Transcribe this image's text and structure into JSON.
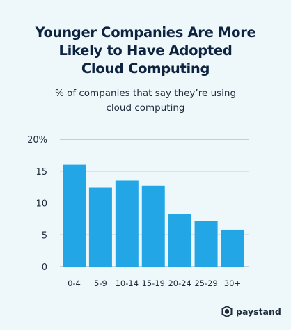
{
  "header": {
    "title_lines": [
      "Younger Companies Are More",
      "Likely to Have Adopted",
      "Cloud Computing"
    ],
    "subtitle_lines": [
      "% of companies that say they’re using",
      "cloud computing"
    ]
  },
  "brand": {
    "name": "paystand",
    "icon": "paystand-hexagon-logo-icon"
  },
  "colors": {
    "bar": "#23a6e6",
    "grid": "#9aa7b3",
    "background": "#eef8fb",
    "title": "#0d2340"
  },
  "chart_data": {
    "type": "bar",
    "title": "Younger Companies Are More Likely to Have Adopted Cloud Computing",
    "subtitle": "% of companies that say they’re using cloud computing",
    "xlabel": "",
    "ylabel": "",
    "categories": [
      "0-4",
      "5-9",
      "10-14",
      "15-19",
      "20-24",
      "25-29",
      "30+"
    ],
    "values": [
      16,
      12.4,
      13.5,
      12.7,
      8.2,
      7.2,
      5.8
    ],
    "ylim": [
      0,
      20
    ],
    "yticks": [
      0,
      5,
      10,
      15,
      20
    ],
    "ytick_labels": [
      "0",
      "5",
      "10",
      "15",
      "20%"
    ],
    "grid": true
  }
}
